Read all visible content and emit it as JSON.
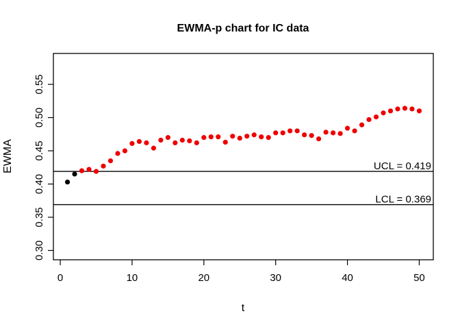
{
  "chart_data": {
    "type": "scatter",
    "title": "EWMA-p chart for IC data",
    "xlabel": "t",
    "ylabel": "EWMA",
    "background_color": "#ffffff",
    "grid": false,
    "x_axis": {
      "range": [
        -0.96,
        51.96
      ],
      "ticks": [
        0,
        10,
        20,
        30,
        40,
        50
      ],
      "tick_labels": [
        "0",
        "10",
        "20",
        "30",
        "40",
        "50"
      ]
    },
    "y_axis": {
      "range": [
        0.286,
        0.5965
      ],
      "ticks": [
        0.3,
        0.35,
        0.4,
        0.45,
        0.5,
        0.55
      ],
      "tick_labels": [
        "0.30",
        "0.35",
        "0.40",
        "0.45",
        "0.50",
        "0.55"
      ]
    },
    "control_limits": [
      {
        "name": "UCL",
        "value": 0.419,
        "label": "UCL = 0.419",
        "line_color": "#000000"
      },
      {
        "name": "LCL",
        "value": 0.369,
        "label": "LCL = 0.369",
        "line_color": "#000000"
      }
    ],
    "series": [
      {
        "name": "initial-points",
        "color": "#000000",
        "t": [
          1,
          2
        ],
        "values": [
          0.403,
          0.415
        ]
      },
      {
        "name": "ewma-points",
        "color": "#ee0000",
        "t": [
          3,
          4,
          5,
          6,
          7,
          8,
          9,
          10,
          11,
          12,
          13,
          14,
          15,
          16,
          17,
          18,
          19,
          20,
          21,
          22,
          23,
          24,
          25,
          26,
          27,
          28,
          29,
          30,
          31,
          32,
          33,
          34,
          35,
          36,
          37,
          38,
          39,
          40,
          41,
          42,
          43,
          44,
          45,
          46,
          47,
          48,
          49,
          50
        ],
        "values": [
          0.42,
          0.422,
          0.419,
          0.427,
          0.435,
          0.446,
          0.45,
          0.461,
          0.464,
          0.462,
          0.454,
          0.466,
          0.47,
          0.462,
          0.466,
          0.465,
          0.462,
          0.47,
          0.471,
          0.471,
          0.463,
          0.472,
          0.469,
          0.472,
          0.474,
          0.471,
          0.47,
          0.477,
          0.477,
          0.48,
          0.48,
          0.474,
          0.473,
          0.468,
          0.478,
          0.477,
          0.476,
          0.484,
          0.48,
          0.489,
          0.497,
          0.501,
          0.507,
          0.51,
          0.513,
          0.514,
          0.513,
          0.51
        ]
      }
    ]
  }
}
